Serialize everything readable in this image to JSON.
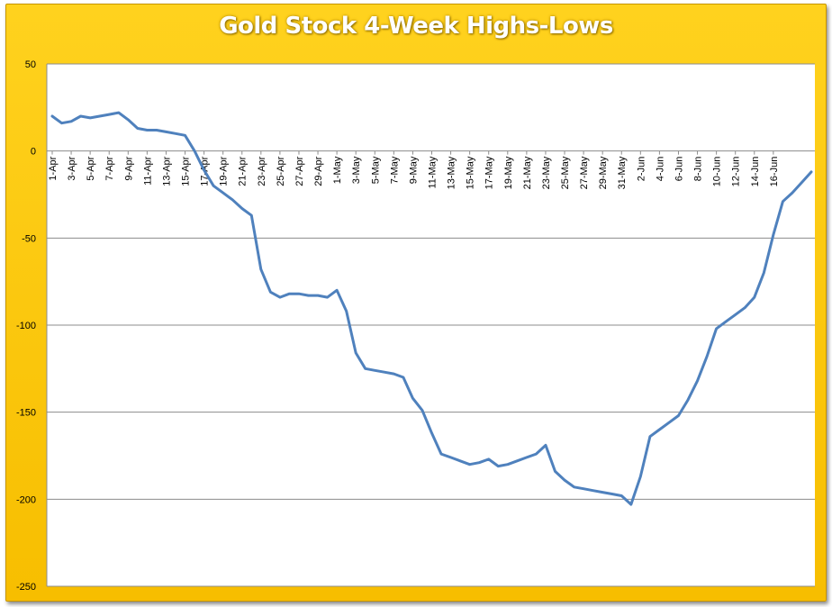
{
  "chart_data": {
    "type": "line",
    "title": "Gold Stock 4-Week Highs-Lows",
    "xlabel": "",
    "ylabel": "",
    "ylim": [
      -250,
      50
    ],
    "yticks": [
      50,
      0,
      -50,
      -100,
      -150,
      -200,
      -250
    ],
    "ytick_labels": [
      "50",
      "0",
      "-50",
      "-100",
      "-150",
      "-200",
      "-250"
    ],
    "grid": true,
    "legend": "none",
    "line_color": "#4f81bd",
    "background_color": "#ffcc00",
    "x_tick_labels": [
      "1-Apr",
      "3-Apr",
      "5-Apr",
      "7-Apr",
      "9-Apr",
      "11-Apr",
      "13-Apr",
      "15-Apr",
      "17-Apr",
      "19-Apr",
      "21-Apr",
      "23-Apr",
      "25-Apr",
      "27-Apr",
      "29-Apr",
      "1-May",
      "3-May",
      "5-May",
      "7-May",
      "9-May",
      "11-May",
      "13-May",
      "15-May",
      "17-May",
      "19-May",
      "21-May",
      "23-May",
      "25-May",
      "27-May",
      "29-May",
      "31-May",
      "2-Jun",
      "4-Jun",
      "6-Jun",
      "8-Jun",
      "10-Jun",
      "12-Jun",
      "14-Jun",
      "16-Jun"
    ],
    "series": [
      {
        "values": [
          20,
          16,
          17,
          20,
          19,
          20,
          21,
          22,
          18,
          13,
          12,
          12,
          11,
          10,
          9,
          0,
          -11,
          -20,
          -24,
          -28,
          -33,
          -37,
          -68,
          -81,
          -84,
          -82,
          -82,
          -83,
          -83,
          -84,
          -80,
          -92,
          -116,
          -125,
          -126,
          -127,
          -128,
          -130,
          -142,
          -149,
          -162,
          -174,
          -176,
          -178,
          -180,
          -179,
          -177,
          -181,
          -180,
          -178,
          -176,
          -174,
          -169,
          -184,
          -189,
          -193,
          -194,
          -195,
          -196,
          -197,
          -198,
          -203,
          -187,
          -164,
          -160,
          -156,
          -152,
          -143,
          -132,
          -118,
          -102,
          -98,
          -94,
          -90,
          -84,
          -70,
          -48,
          -29,
          -24,
          -18,
          -12
        ]
      }
    ]
  }
}
